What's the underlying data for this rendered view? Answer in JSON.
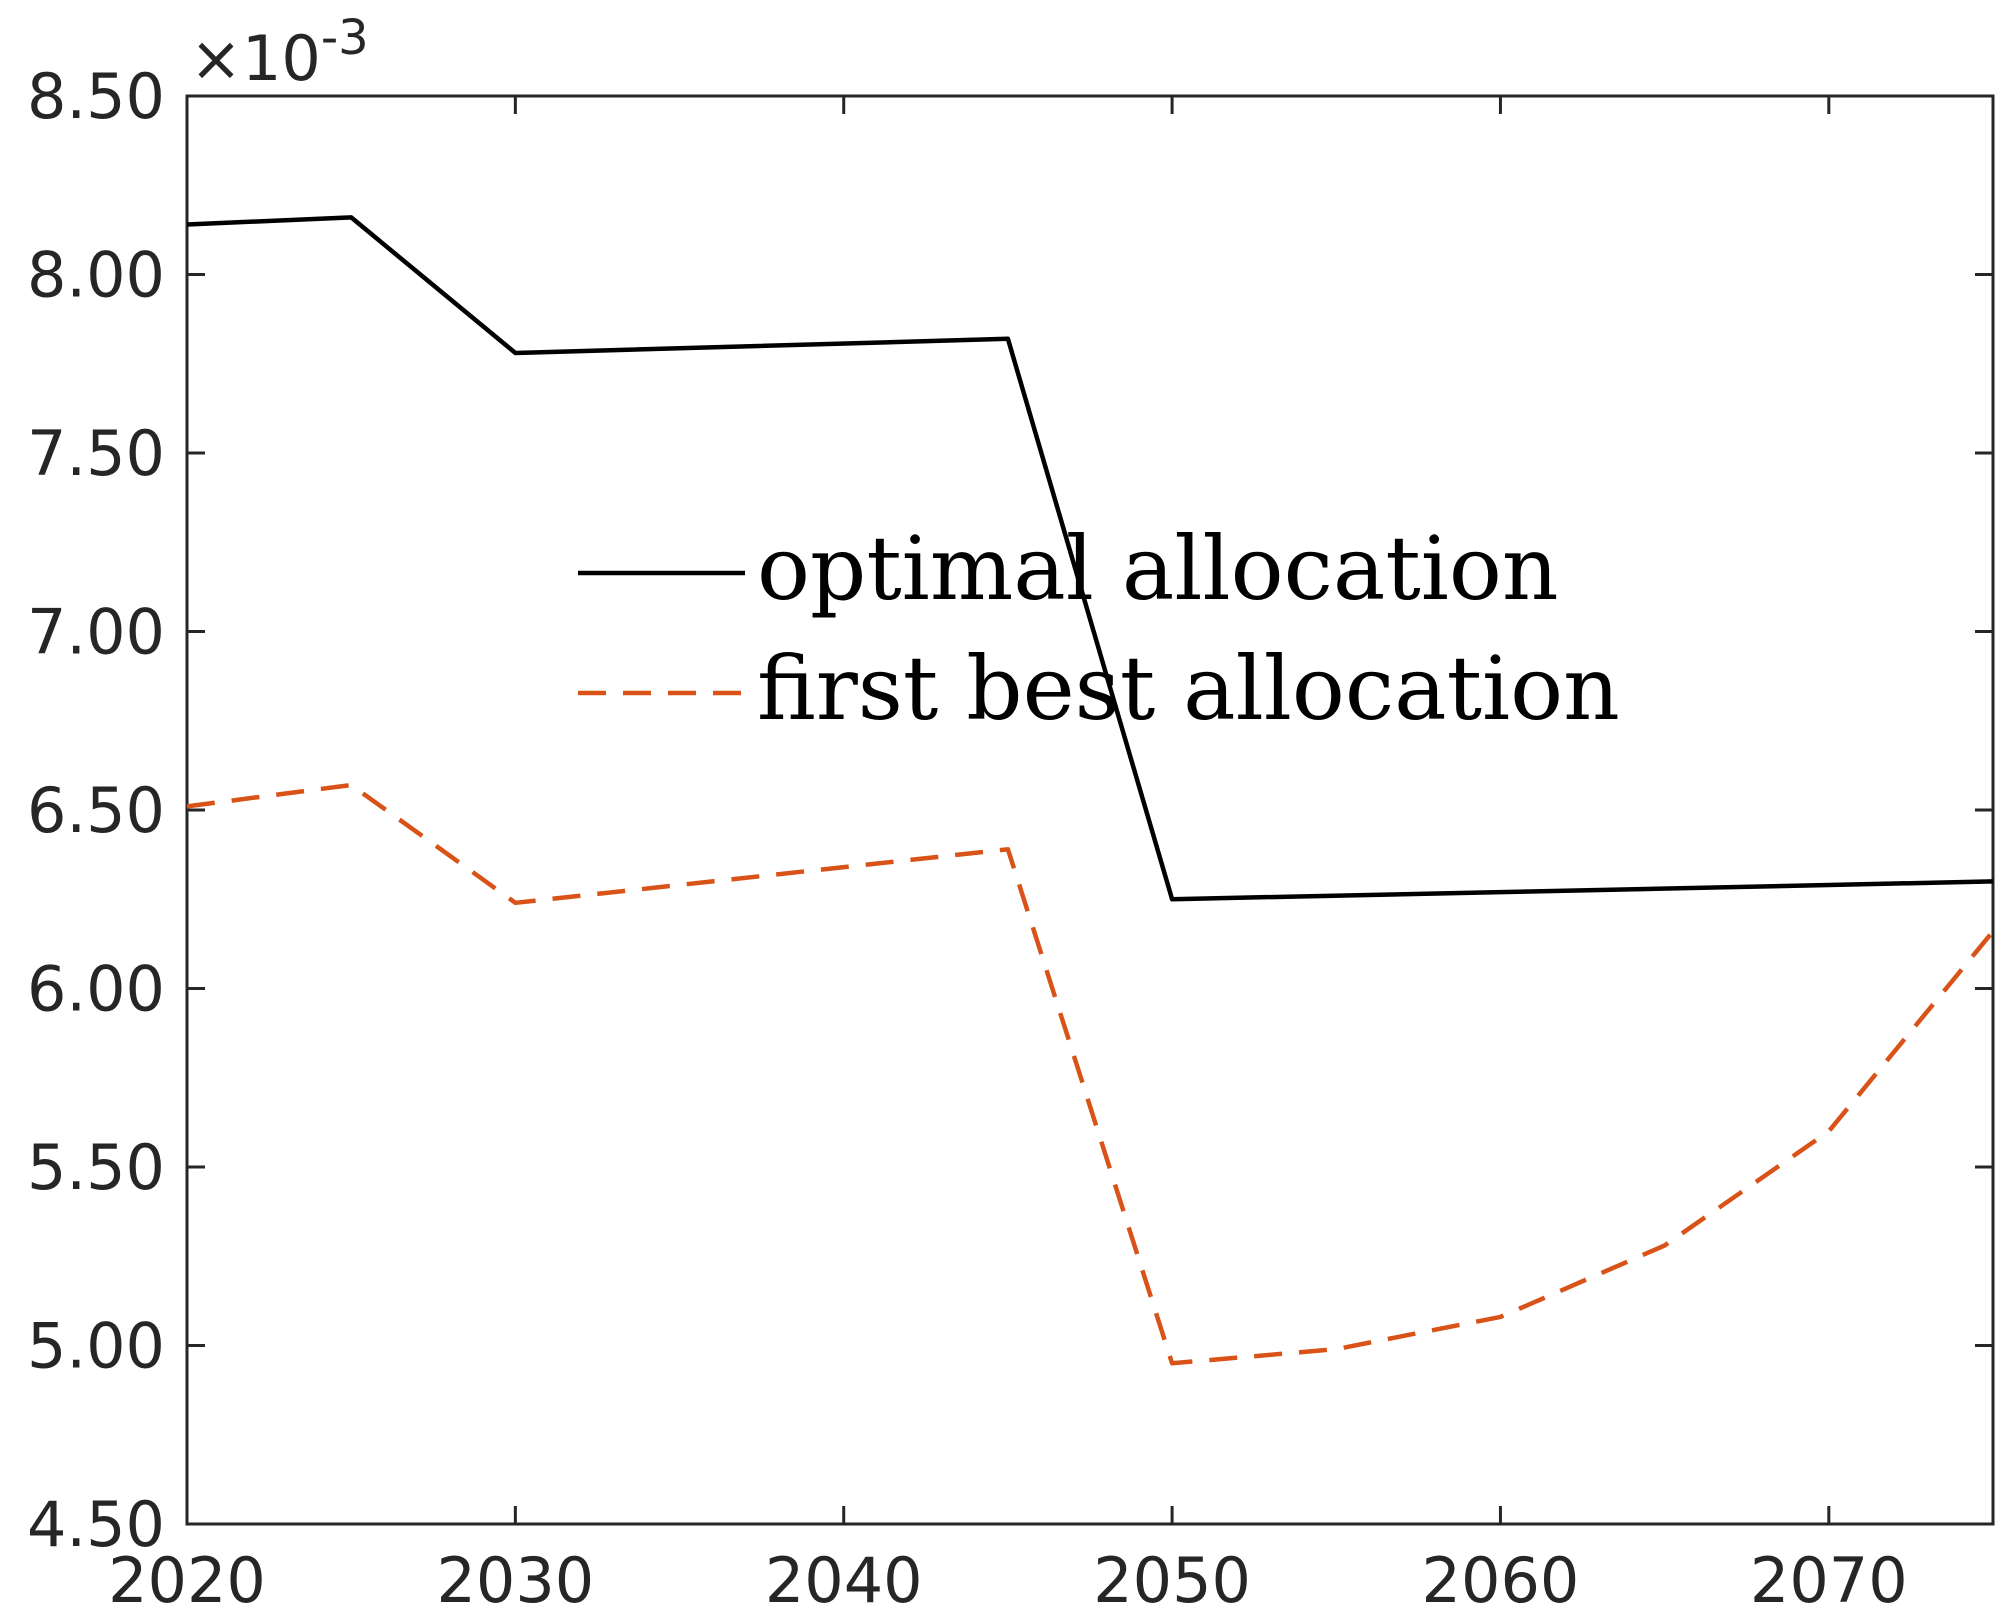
{
  "chart_data": {
    "type": "line",
    "x": [
      2020,
      2025,
      2030,
      2045,
      2050,
      2060,
      2070,
      2075
    ],
    "series": [
      {
        "name": "optimal allocation",
        "values": [
          0.00814,
          0.00816,
          0.00778,
          0.00782,
          0.00625,
          0.00627,
          0.00629,
          0.0063
        ],
        "color": "#000000",
        "dash": "solid"
      },
      {
        "name": "first best allocation",
        "x": [
          2020,
          2025,
          2030,
          2045,
          2050,
          2055,
          2060,
          2065,
          2070,
          2075
        ],
        "values": [
          0.00651,
          0.00657,
          0.00624,
          0.00639,
          0.00495,
          0.00499,
          0.00508,
          0.00528,
          0.0056,
          0.00616
        ],
        "color": "#D95319",
        "dash": "dashed"
      }
    ],
    "xlim": [
      2020,
      2075
    ],
    "ylim": [
      0.0045,
      0.0085
    ],
    "x_ticks": [
      "2020",
      "2030",
      "2040",
      "2050",
      "2060",
      "2070"
    ],
    "x_tick_values": [
      2020,
      2030,
      2040,
      2050,
      2060,
      2070
    ],
    "y_ticks": [
      "4.50",
      "5.00",
      "5.50",
      "6.00",
      "6.50",
      "7.00",
      "7.50",
      "8.00",
      "8.50"
    ],
    "y_tick_values": [
      0.0045,
      0.005,
      0.0055,
      0.006,
      0.0065,
      0.007,
      0.0075,
      0.008,
      0.0085
    ],
    "y_exponent_base": "×10",
    "y_exponent_power": "-3",
    "grid": false,
    "legend_placement": "center"
  }
}
